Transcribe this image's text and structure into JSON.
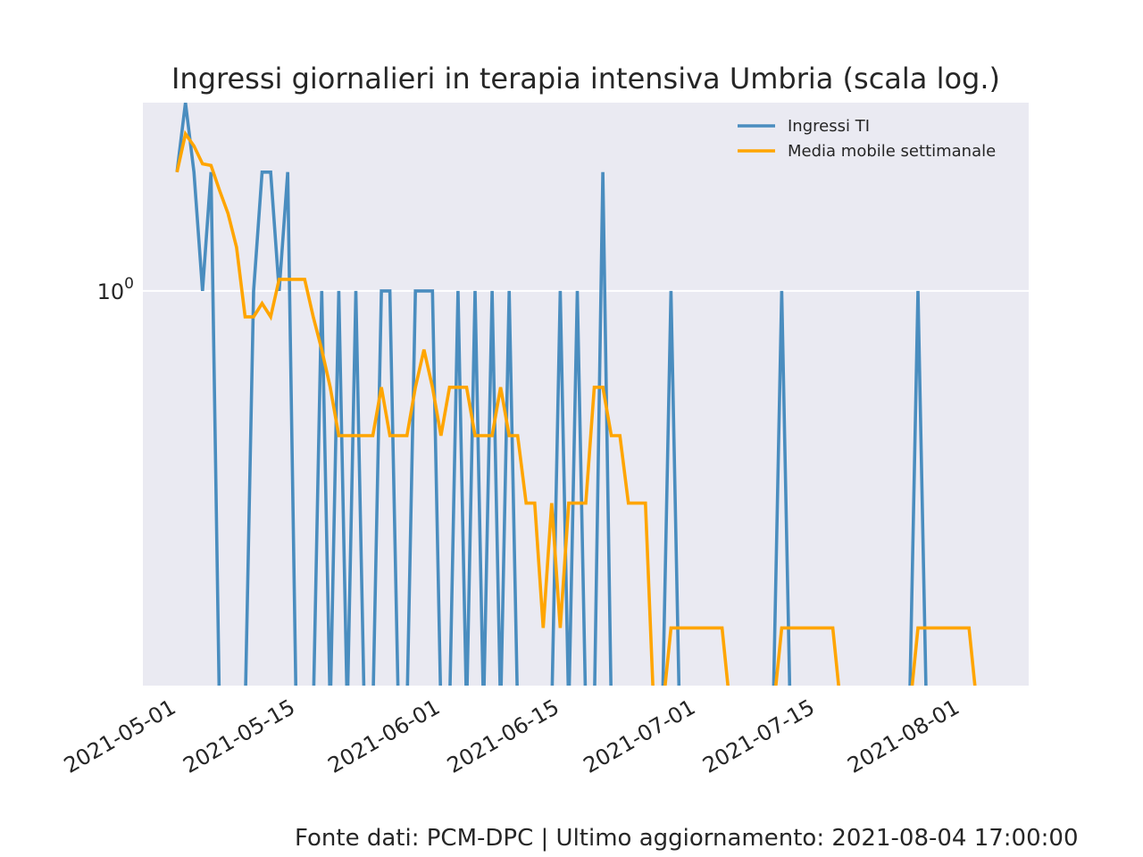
{
  "chart_data": {
    "type": "line",
    "title": "Ingressi giornalieri in terapia intensiva Umbria (scala log.)",
    "xlabel": "",
    "ylabel": "",
    "yscale": "log",
    "xlim": [
      "2021-04-28",
      "2021-08-10"
    ],
    "ylim": [
      0.1,
      3.0
    ],
    "grid": true,
    "legend_position": "top-right",
    "xticks": [
      "2021-05-01",
      "2021-05-15",
      "2021-06-01",
      "2021-06-15",
      "2021-07-01",
      "2021-07-15",
      "2021-08-01"
    ],
    "yticks": [
      {
        "value": 1,
        "base": "10",
        "exp": "0"
      }
    ],
    "series": [
      {
        "name": "Ingressi TI",
        "color": "#4a8dbf",
        "points": [
          [
            "2021-05-02",
            2
          ],
          [
            "2021-05-03",
            3
          ],
          [
            "2021-05-04",
            2
          ],
          [
            "2021-05-05",
            1
          ],
          [
            "2021-05-06",
            2
          ],
          [
            "2021-05-07",
            0
          ],
          [
            "2021-05-08",
            0
          ],
          [
            "2021-05-09",
            0
          ],
          [
            "2021-05-10",
            0
          ],
          [
            "2021-05-11",
            1
          ],
          [
            "2021-05-12",
            2
          ],
          [
            "2021-05-13",
            2
          ],
          [
            "2021-05-14",
            1
          ],
          [
            "2021-05-15",
            2
          ],
          [
            "2021-05-16",
            0
          ],
          [
            "2021-05-17",
            0
          ],
          [
            "2021-05-18",
            0
          ],
          [
            "2021-05-19",
            1
          ],
          [
            "2021-05-20",
            0
          ],
          [
            "2021-05-21",
            1
          ],
          [
            "2021-05-22",
            0
          ],
          [
            "2021-05-23",
            1
          ],
          [
            "2021-05-24",
            0
          ],
          [
            "2021-05-25",
            0
          ],
          [
            "2021-05-26",
            1
          ],
          [
            "2021-05-27",
            1
          ],
          [
            "2021-05-28",
            0
          ],
          [
            "2021-05-29",
            0
          ],
          [
            "2021-05-30",
            1
          ],
          [
            "2021-05-31",
            1
          ],
          [
            "2021-06-01",
            1
          ],
          [
            "2021-06-02",
            0
          ],
          [
            "2021-06-03",
            0
          ],
          [
            "2021-06-04",
            1
          ],
          [
            "2021-06-05",
            0
          ],
          [
            "2021-06-06",
            1
          ],
          [
            "2021-06-07",
            0
          ],
          [
            "2021-06-08",
            1
          ],
          [
            "2021-06-09",
            0
          ],
          [
            "2021-06-10",
            1
          ],
          [
            "2021-06-11",
            0
          ],
          [
            "2021-06-12",
            0
          ],
          [
            "2021-06-13",
            0
          ],
          [
            "2021-06-14",
            0
          ],
          [
            "2021-06-15",
            0
          ],
          [
            "2021-06-16",
            1
          ],
          [
            "2021-06-17",
            0
          ],
          [
            "2021-06-18",
            1
          ],
          [
            "2021-06-19",
            0
          ],
          [
            "2021-06-20",
            0
          ],
          [
            "2021-06-21",
            2
          ],
          [
            "2021-06-22",
            0
          ],
          [
            "2021-06-23",
            0
          ],
          [
            "2021-06-24",
            0
          ],
          [
            "2021-06-25",
            0
          ],
          [
            "2021-06-26",
            0
          ],
          [
            "2021-06-27",
            0
          ],
          [
            "2021-06-28",
            0
          ],
          [
            "2021-06-29",
            1
          ],
          [
            "2021-06-30",
            0
          ],
          [
            "2021-07-11",
            0
          ],
          [
            "2021-07-12",
            1
          ],
          [
            "2021-07-13",
            0
          ],
          [
            "2021-07-27",
            0
          ],
          [
            "2021-07-28",
            1
          ],
          [
            "2021-07-29",
            0
          ],
          [
            "2021-08-04",
            0
          ]
        ]
      },
      {
        "name": "Media mobile settimanale",
        "color": "#ffa500",
        "points": [
          [
            "2021-05-02",
            2.0
          ],
          [
            "2021-05-03",
            2.5
          ],
          [
            "2021-05-04",
            2.33
          ],
          [
            "2021-05-05",
            2.1
          ],
          [
            "2021-05-06",
            2.08
          ],
          [
            "2021-05-07",
            1.8
          ],
          [
            "2021-05-08",
            1.57
          ],
          [
            "2021-05-09",
            1.29
          ],
          [
            "2021-05-10",
            0.86
          ],
          [
            "2021-05-11",
            0.86
          ],
          [
            "2021-05-12",
            0.93
          ],
          [
            "2021-05-13",
            0.86
          ],
          [
            "2021-05-14",
            1.07
          ],
          [
            "2021-05-15",
            1.07
          ],
          [
            "2021-05-16",
            1.07
          ],
          [
            "2021-05-17",
            1.07
          ],
          [
            "2021-05-18",
            0.86
          ],
          [
            "2021-05-19",
            0.71
          ],
          [
            "2021-05-20",
            0.57
          ],
          [
            "2021-05-21",
            0.43
          ],
          [
            "2021-05-22",
            0.43
          ],
          [
            "2021-05-23",
            0.43
          ],
          [
            "2021-05-24",
            0.43
          ],
          [
            "2021-05-25",
            0.43
          ],
          [
            "2021-05-26",
            0.57
          ],
          [
            "2021-05-27",
            0.43
          ],
          [
            "2021-05-28",
            0.43
          ],
          [
            "2021-05-29",
            0.43
          ],
          [
            "2021-05-30",
            0.57
          ],
          [
            "2021-05-31",
            0.71
          ],
          [
            "2021-06-01",
            0.57
          ],
          [
            "2021-06-02",
            0.43
          ],
          [
            "2021-06-03",
            0.57
          ],
          [
            "2021-06-04",
            0.57
          ],
          [
            "2021-06-05",
            0.57
          ],
          [
            "2021-06-06",
            0.43
          ],
          [
            "2021-06-07",
            0.43
          ],
          [
            "2021-06-08",
            0.43
          ],
          [
            "2021-06-09",
            0.57
          ],
          [
            "2021-06-10",
            0.43
          ],
          [
            "2021-06-11",
            0.43
          ],
          [
            "2021-06-12",
            0.29
          ],
          [
            "2021-06-13",
            0.29
          ],
          [
            "2021-06-14",
            0.14
          ],
          [
            "2021-06-15",
            0.29
          ],
          [
            "2021-06-16",
            0.14
          ],
          [
            "2021-06-17",
            0.29
          ],
          [
            "2021-06-18",
            0.29
          ],
          [
            "2021-06-19",
            0.29
          ],
          [
            "2021-06-20",
            0.57
          ],
          [
            "2021-06-21",
            0.57
          ],
          [
            "2021-06-22",
            0.43
          ],
          [
            "2021-06-23",
            0.43
          ],
          [
            "2021-06-24",
            0.29
          ],
          [
            "2021-06-25",
            0.29
          ],
          [
            "2021-06-26",
            0.29
          ],
          [
            "2021-06-27",
            0
          ],
          [
            "2021-06-28",
            0
          ],
          [
            "2021-06-29",
            0.14
          ],
          [
            "2021-06-30",
            0.14
          ],
          [
            "2021-07-01",
            0.14
          ],
          [
            "2021-07-02",
            0.14
          ],
          [
            "2021-07-03",
            0.14
          ],
          [
            "2021-07-04",
            0.14
          ],
          [
            "2021-07-05",
            0.14
          ],
          [
            "2021-07-06",
            0
          ],
          [
            "2021-07-11",
            0
          ],
          [
            "2021-07-12",
            0.14
          ],
          [
            "2021-07-13",
            0.14
          ],
          [
            "2021-07-14",
            0.14
          ],
          [
            "2021-07-15",
            0.14
          ],
          [
            "2021-07-16",
            0.14
          ],
          [
            "2021-07-17",
            0.14
          ],
          [
            "2021-07-18",
            0.14
          ],
          [
            "2021-07-19",
            0
          ],
          [
            "2021-07-27",
            0
          ],
          [
            "2021-07-28",
            0.14
          ],
          [
            "2021-07-29",
            0.14
          ],
          [
            "2021-07-30",
            0.14
          ],
          [
            "2021-07-31",
            0.14
          ],
          [
            "2021-08-01",
            0.14
          ],
          [
            "2021-08-02",
            0.14
          ],
          [
            "2021-08-03",
            0.14
          ],
          [
            "2021-08-04",
            0
          ]
        ]
      }
    ]
  },
  "footer": "Fonte dati: PCM-DPC | Ultimo aggiornamento: 2021-08-04 17:00:00"
}
